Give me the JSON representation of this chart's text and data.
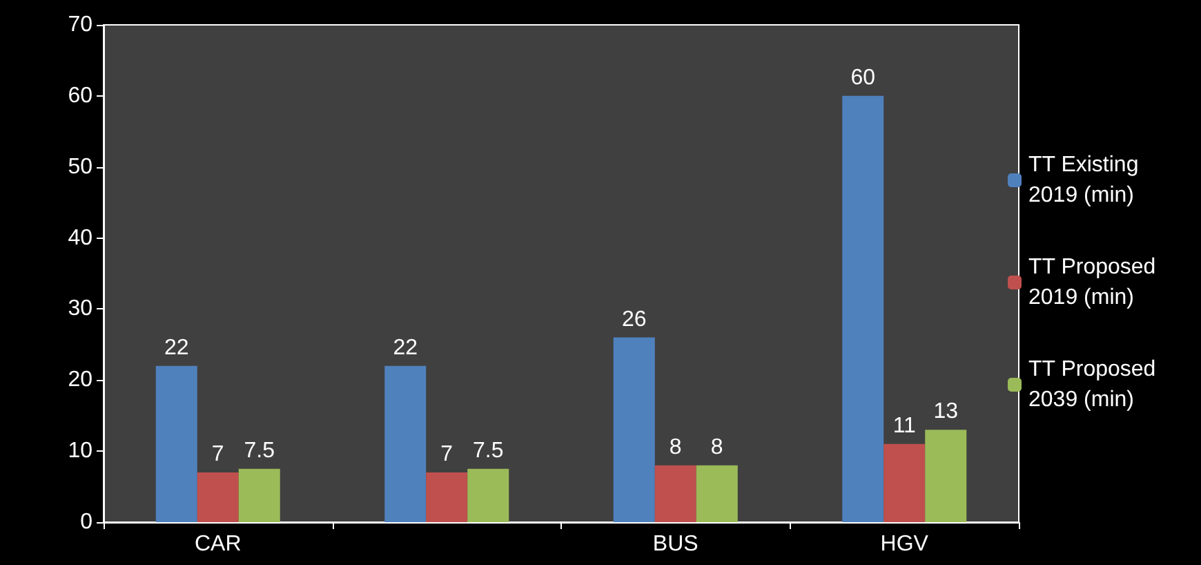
{
  "chart_data": {
    "type": "bar",
    "categories": [
      "CAR",
      null,
      "BUS",
      "HGV"
    ],
    "series": [
      {
        "name": "TT Existing 2019 (min)",
        "color": "#4f81bd",
        "values": [
          22,
          22,
          26,
          60
        ]
      },
      {
        "name": "TT Proposed 2019 (min)",
        "color": "#c0504d",
        "values": [
          7,
          7,
          8,
          11
        ]
      },
      {
        "name": "TT Proposed 2039 (min)",
        "color": "#9bbb59",
        "values": [
          7.5,
          7.5,
          8,
          13
        ]
      }
    ],
    "ylim": [
      0,
      70
    ],
    "yticks": [
      0,
      10,
      20,
      30,
      40,
      50,
      60,
      70
    ],
    "grid": false,
    "legend": "right",
    "data_labels": true
  }
}
